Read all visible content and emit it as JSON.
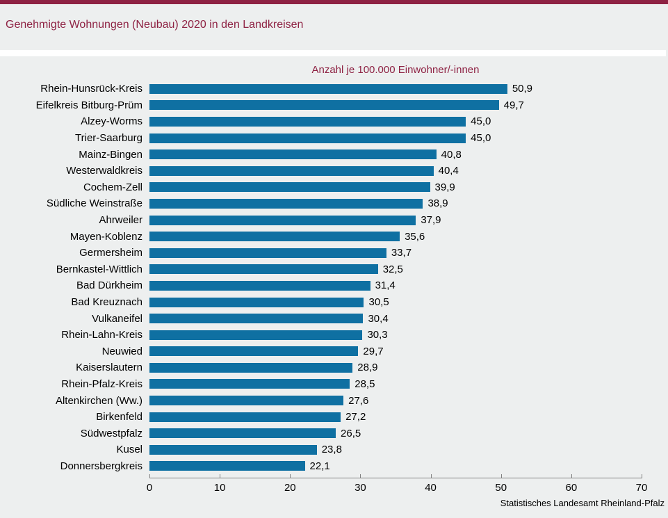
{
  "page": {
    "title": "Genehmigte Wohnungen (Neubau) 2020 in den Landkreisen",
    "footer": "Statistisches Landesamt Rheinland-Pfalz"
  },
  "colors": {
    "accent": "#8e2243",
    "bar": "#0f70a2",
    "background": "#edefef",
    "axis": "#808080"
  },
  "chart_data": {
    "type": "bar",
    "orientation": "horizontal",
    "title": "Anzahl je 100.000 Einwohner/-innen",
    "xlabel": "",
    "ylabel": "",
    "xlim": [
      0,
      70
    ],
    "xticks": [
      0,
      10,
      20,
      30,
      40,
      50,
      60,
      70
    ],
    "grid": false,
    "legend": false,
    "value_labels": true,
    "categories": [
      "Rhein-Hunsrück-Kreis",
      "Eifelkreis Bitburg-Prüm",
      "Alzey-Worms",
      "Trier-Saarburg",
      "Mainz-Bingen",
      "Westerwaldkreis",
      "Cochem-Zell",
      "Südliche Weinstraße",
      "Ahrweiler",
      "Mayen-Koblenz",
      "Germersheim",
      "Bernkastel-Wittlich",
      "Bad Dürkheim",
      "Bad Kreuznach",
      "Vulkaneifel",
      "Rhein-Lahn-Kreis",
      "Neuwied",
      "Kaiserslautern",
      "Rhein-Pfalz-Kreis",
      "Altenkirchen (Ww.)",
      "Birkenfeld",
      "Südwestpfalz",
      "Kusel",
      "Donnersbergkreis"
    ],
    "values": [
      50.9,
      49.7,
      45.0,
      45.0,
      40.8,
      40.4,
      39.9,
      38.9,
      37.9,
      35.6,
      33.7,
      32.5,
      31.4,
      30.5,
      30.4,
      30.3,
      29.7,
      28.9,
      28.5,
      27.6,
      27.2,
      26.5,
      23.8,
      22.1
    ],
    "value_display": [
      "50,9",
      "49,7",
      "45,0",
      "45,0",
      "40,8",
      "40,4",
      "39,9",
      "38,9",
      "37,9",
      "35,6",
      "33,7",
      "32,5",
      "31,4",
      "30,5",
      "30,4",
      "30,3",
      "29,7",
      "28,9",
      "28,5",
      "27,6",
      "27,2",
      "26,5",
      "23,8",
      "22,1"
    ]
  }
}
